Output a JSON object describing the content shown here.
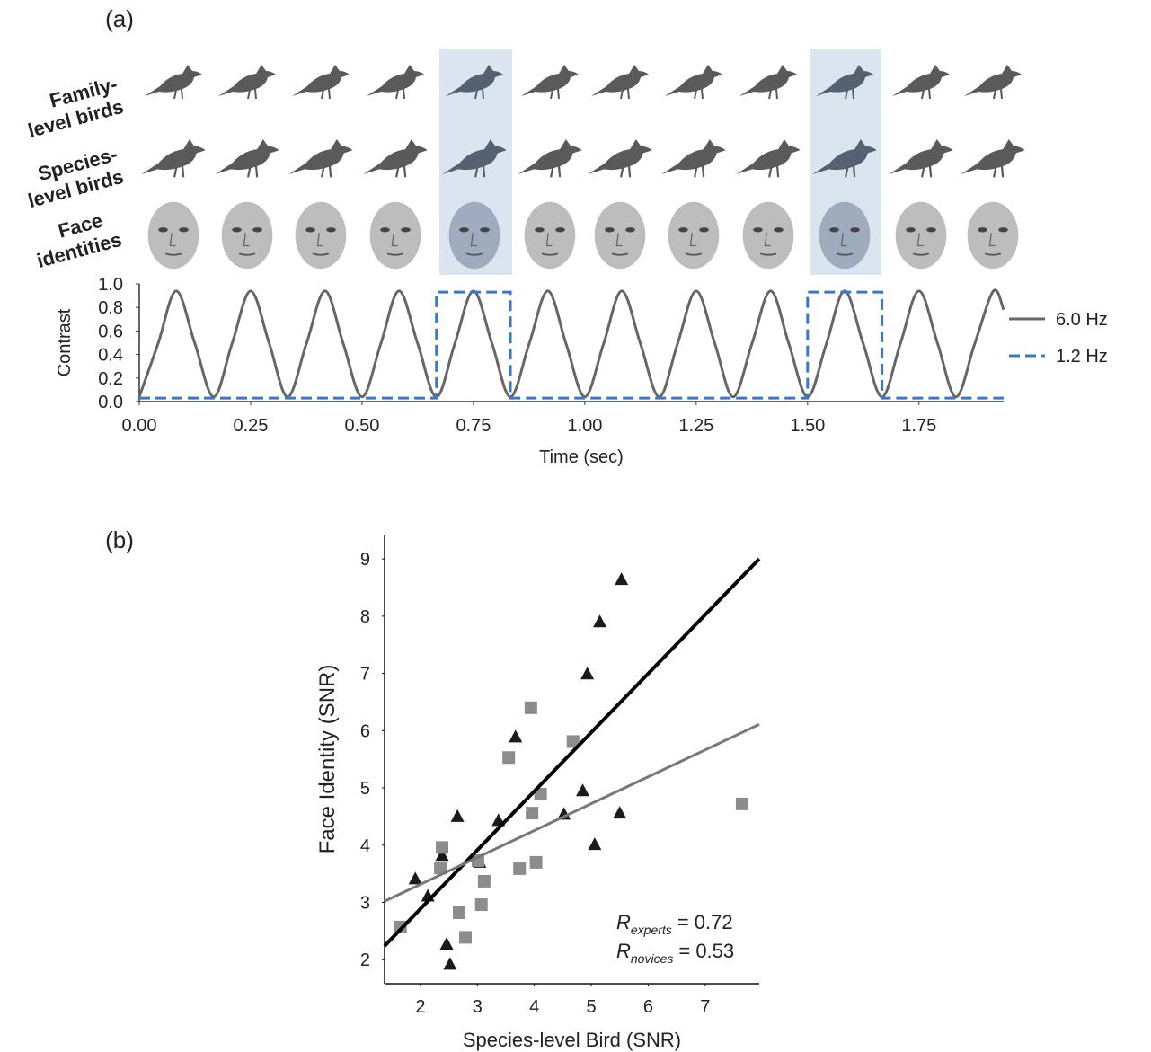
{
  "panel_labels": [
    "(a)",
    "(b)"
  ],
  "row_labels": [
    [
      "Family-",
      "level birds"
    ],
    [
      "Species-",
      "level birds"
    ],
    [
      "Face",
      "identities"
    ]
  ],
  "chart_data": [
    {
      "type": "line",
      "xlabel": "Time (sec)",
      "ylabel": "Contrast",
      "xlim": [
        0,
        1.94
      ],
      "ylim": [
        0,
        1
      ],
      "xticks": [
        {
          "value": 0,
          "label": "0.00"
        },
        {
          "value": 0.25,
          "label": "0.25"
        },
        {
          "value": 0.5,
          "label": "0.50"
        },
        {
          "value": 0.75,
          "label": "0.75"
        },
        {
          "value": 1,
          "label": "1.00"
        },
        {
          "value": 1.25,
          "label": "1.25"
        },
        {
          "value": 1.5,
          "label": "1.50"
        },
        {
          "value": 1.75,
          "label": "1.75"
        }
      ],
      "yticks": [
        {
          "value": 0,
          "label": "0.0"
        },
        {
          "value": 0.2,
          "label": "0.2"
        },
        {
          "value": 0.4,
          "label": "0.4"
        },
        {
          "value": 0.6,
          "label": "0.6"
        },
        {
          "value": 0.8,
          "label": "0.8"
        },
        {
          "value": 1,
          "label": "1.0"
        }
      ],
      "legend": "right",
      "series": [
        {
          "name": "6.0 Hz",
          "color": "#666666",
          "dash": false,
          "smooth": true,
          "x": [
            0,
            0.042,
            0.083,
            0.125,
            0.167,
            0.208,
            0.25,
            0.292,
            0.333,
            0.375,
            0.417,
            0.458,
            0.5,
            0.542,
            0.583,
            0.625,
            0.667,
            0.708,
            0.75,
            0.792,
            0.833,
            0.875,
            0.917,
            0.958,
            1,
            1.042,
            1.083,
            1.125,
            1.167,
            1.208,
            1.25,
            1.292,
            1.333,
            1.375,
            1.417,
            1.458,
            1.5,
            1.542,
            1.583,
            1.625,
            1.667,
            1.708,
            1.75,
            1.792,
            1.833,
            1.875,
            1.917,
            1.94
          ],
          "values": [
            0.04,
            0.49,
            0.94,
            0.49,
            0.04,
            0.49,
            0.94,
            0.49,
            0.04,
            0.49,
            0.94,
            0.49,
            0.04,
            0.49,
            0.94,
            0.49,
            0.04,
            0.49,
            0.94,
            0.49,
            0.04,
            0.49,
            0.94,
            0.49,
            0.04,
            0.49,
            0.94,
            0.49,
            0.04,
            0.49,
            0.94,
            0.49,
            0.04,
            0.49,
            0.94,
            0.49,
            0.04,
            0.49,
            0.94,
            0.49,
            0.04,
            0.49,
            0.94,
            0.49,
            0.04,
            0.49,
            0.94,
            0.78
          ]
        },
        {
          "name": "1.2 Hz",
          "color": "#3a78c9",
          "dash": true,
          "smooth": false,
          "x": [
            0,
            0.667,
            0.667,
            0.833,
            0.833,
            1.5,
            1.5,
            1.667,
            1.667,
            1.94
          ],
          "values": [
            0.03,
            0.03,
            0.93,
            0.93,
            0.03,
            0.03,
            0.93,
            0.93,
            0.03,
            0.03
          ]
        }
      ]
    },
    {
      "type": "scatter",
      "xlabel": "Species-level Bird (SNR)",
      "ylabel": "Face Identity (SNR)",
      "xlim": [
        1.37,
        7.95
      ],
      "ylim": [
        1.58,
        9.41
      ],
      "xticks": [
        2,
        3,
        4,
        5,
        6,
        7
      ],
      "yticks": [
        2,
        3,
        4,
        5,
        6,
        7,
        8,
        9
      ],
      "series": [
        {
          "marker": "triangle",
          "color": "#1a1a1a",
          "x": [
            1.91,
            2.13,
            2.38,
            2.46,
            2.52,
            2.65,
            3.04,
            3.37,
            3.67,
            4.93,
            5.15,
            5.53,
            4.85,
            4.52,
            5.06,
            5.5
          ],
          "values": [
            3.41,
            3.11,
            3.82,
            2.27,
            1.92,
            4.5,
            3.7,
            4.43,
            5.89,
            6.99,
            7.9,
            8.64,
            4.95,
            4.54,
            4.01,
            4.56
          ],
          "fit": {
            "x": [
              1.37,
              7.95
            ],
            "values": [
              2.24,
              9.0
            ]
          }
        },
        {
          "marker": "square",
          "color": "#8c8c8c",
          "x": [
            1.65,
            2.38,
            2.35,
            3.01,
            3.12,
            3.07,
            2.68,
            2.79,
            3.55,
            3.94,
            4.68,
            4.11,
            3.96,
            3.74,
            4.03,
            7.65
          ],
          "values": [
            2.57,
            3.96,
            3.6,
            3.73,
            3.37,
            2.96,
            2.82,
            2.39,
            5.53,
            6.4,
            5.81,
            4.89,
            4.56,
            3.59,
            3.7,
            4.72
          ],
          "fit": {
            "x": [
              1.37,
              7.95
            ],
            "values": [
              3.02,
              6.11
            ]
          }
        }
      ],
      "annotations": [
        {
          "symbol": "R",
          "subscript": "experts",
          "text": "= 0.72"
        },
        {
          "symbol": "R",
          "subscript": "novices",
          "text": "= 0.53"
        }
      ]
    }
  ]
}
